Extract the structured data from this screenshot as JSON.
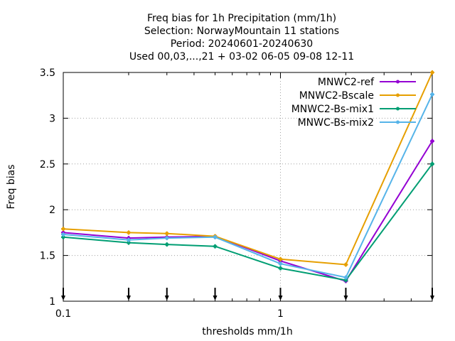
{
  "chart_data": {
    "type": "line",
    "title_lines": [
      "Freq bias  for 1h Precipitation (mm/1h)",
      "Selection: NorwayMountain     11 stations",
      "Period: 20240601-20240630",
      "Used 00,03,...,21 + 03-02 06-05 09-08 12-11"
    ],
    "xlabel": "thresholds mm/1h",
    "ylabel": "Freq bias",
    "xscale": "log",
    "xlim": [
      0.1,
      5
    ],
    "ylim": [
      1,
      3.5
    ],
    "x_tick_labels": [
      {
        "value": 0.1,
        "label": "0.1"
      },
      {
        "value": 1,
        "label": "1"
      }
    ],
    "y_ticks": [
      {
        "value": 1,
        "label": "1"
      },
      {
        "value": 1.5,
        "label": "1.5"
      },
      {
        "value": 2,
        "label": "2"
      },
      {
        "value": 2.5,
        "label": "2.5"
      },
      {
        "value": 3,
        "label": "3"
      },
      {
        "value": 3.5,
        "label": "3.5"
      }
    ],
    "x": [
      0.1,
      0.2,
      0.3,
      0.5,
      1,
      2,
      5
    ],
    "series": [
      {
        "name": "MNWC2-ref",
        "color": "#9400d3",
        "values": [
          1.75,
          1.69,
          1.7,
          1.71,
          1.44,
          1.22,
          2.75
        ]
      },
      {
        "name": "MNWC2-Bscale",
        "color": "#e69f00",
        "values": [
          1.79,
          1.75,
          1.74,
          1.71,
          1.46,
          1.4,
          3.5
        ]
      },
      {
        "name": "MNWC2-Bs-mix1",
        "color": "#009e73",
        "values": [
          1.7,
          1.64,
          1.62,
          1.6,
          1.36,
          1.23,
          2.5
        ]
      },
      {
        "name": "MNWC-Bs-mix2",
        "color": "#56b4e9",
        "values": [
          1.73,
          1.67,
          1.69,
          1.7,
          1.41,
          1.26,
          3.26
        ]
      }
    ],
    "case_markers_at_x": [
      0.1,
      0.2,
      0.3,
      0.5,
      1,
      2,
      5
    ],
    "grid": true,
    "legend_position": "top-right"
  }
}
